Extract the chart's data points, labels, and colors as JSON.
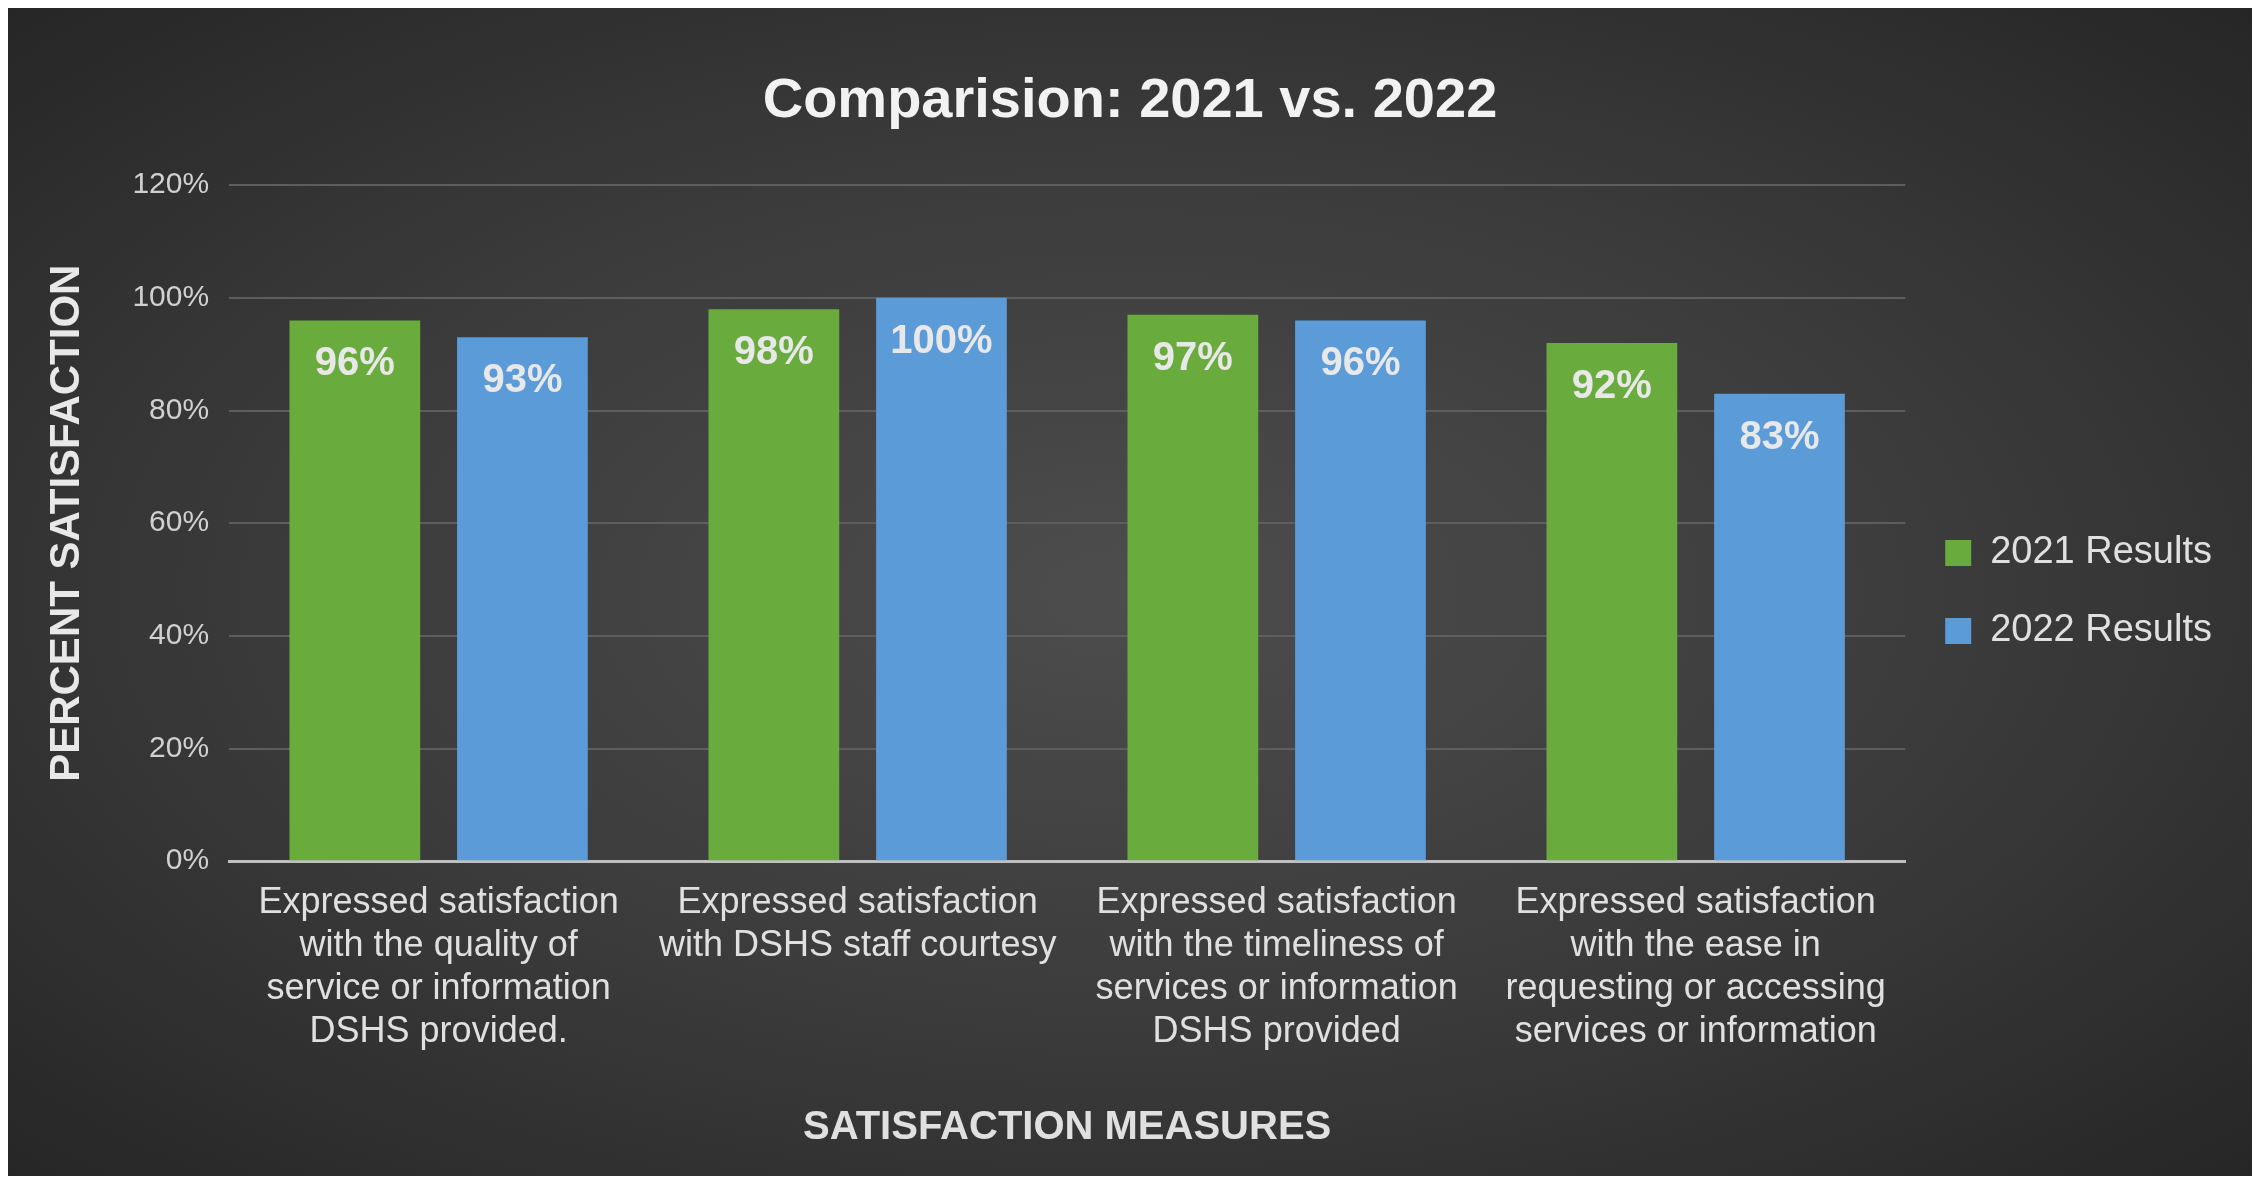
{
  "chart_data": {
    "type": "bar",
    "title": "Comparision: 2021 vs. 2022",
    "xlabel": "SATISFACTION MEASURES",
    "ylabel": "PERCENT SATISFACTION",
    "categories": [
      "Expressed satisfaction with the quality of service or information DSHS provided.",
      "Expressed satisfaction with DSHS staff courtesy",
      "Expressed satisfaction with the timeliness of services or information DSHS provided",
      "Expressed satisfaction with the ease in requesting or accessing services or information"
    ],
    "series": [
      {
        "name": "2021 Results",
        "color": "#6aab3e",
        "values": [
          96,
          98,
          97,
          92
        ],
        "value_labels": [
          "96%",
          "98%",
          "97%",
          "92%"
        ]
      },
      {
        "name": "2022 Results",
        "color": "#5a9bd8",
        "values": [
          93,
          100,
          96,
          83
        ],
        "value_labels": [
          "93%",
          "100%",
          "96%",
          "83%"
        ]
      }
    ],
    "ylim": [
      0,
      120
    ],
    "yticks": [
      {
        "value": 0,
        "label": "0%"
      },
      {
        "value": 20,
        "label": "20%"
      },
      {
        "value": 40,
        "label": "40%"
      },
      {
        "value": 60,
        "label": "60%"
      },
      {
        "value": 80,
        "label": "80%"
      },
      {
        "value": 100,
        "label": "100%"
      },
      {
        "value": 120,
        "label": "120%"
      }
    ],
    "grid": "y",
    "legend": "right"
  }
}
